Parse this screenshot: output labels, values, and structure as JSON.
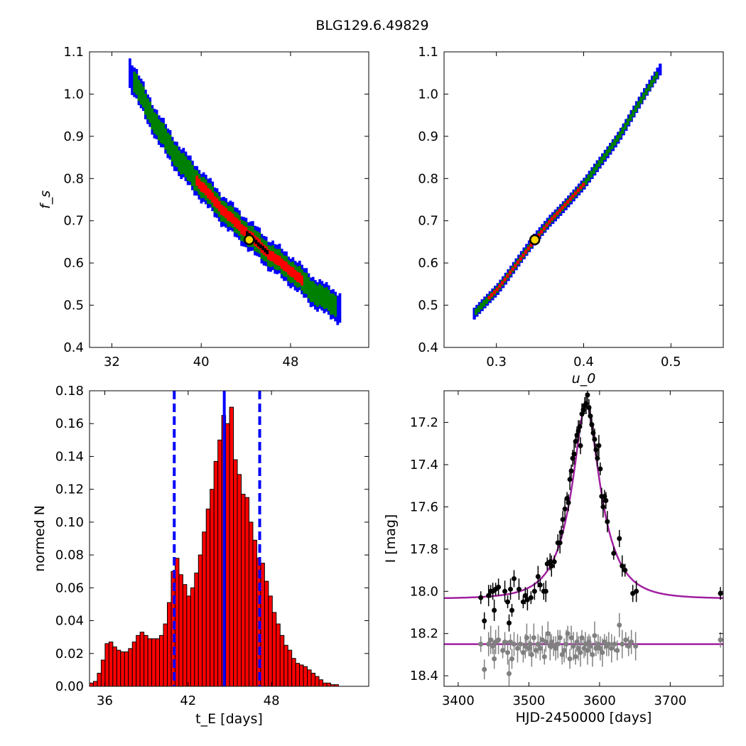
{
  "figure_title": "BLG129.6.49829",
  "colors": {
    "region_outer": "#0000ff",
    "region_mid": "#008000",
    "region_inner": "#ff0000",
    "region_core": "#000000",
    "best_marker_fill": "#ffd700",
    "hist_bar": "#ff0000",
    "hist_line": "#0000ff",
    "model_curve": "#a020a0",
    "data_points": "#000000",
    "residual_points": "#808080"
  },
  "chart_data": [
    {
      "type": "heatmap",
      "xlabel": "",
      "ylabel": "f_s",
      "xlim": [
        30.0,
        55.0
      ],
      "ylim": [
        0.4,
        1.1
      ],
      "xticks": [
        32,
        40,
        48
      ],
      "yticks": [
        0.4,
        0.5,
        0.6,
        0.7,
        0.8,
        0.9,
        1.0,
        1.1
      ],
      "confidence_band": {
        "centerline": [
          [
            33.5,
            1.05
          ],
          [
            36.0,
            0.92
          ],
          [
            38.0,
            0.84
          ],
          [
            40.0,
            0.78
          ],
          [
            42.0,
            0.72
          ],
          [
            44.0,
            0.67
          ],
          [
            46.0,
            0.62
          ],
          [
            48.0,
            0.58
          ],
          [
            50.0,
            0.53
          ],
          [
            52.5,
            0.49
          ]
        ],
        "outer_halfwidth_fs": 0.035,
        "mid_halfwidth_fs": 0.025,
        "inner_from_tE": 39.5,
        "inner_to_tE": 49.0,
        "inner_halfwidth_fs": 0.012
      },
      "best_fit": {
        "tE": 44.3,
        "fs": 0.655
      }
    },
    {
      "type": "heatmap",
      "xlabel": "u_0",
      "ylabel": "",
      "xlim": [
        0.24,
        0.56
      ],
      "ylim": [
        0.4,
        1.1
      ],
      "xticks": [
        0.3,
        0.4,
        0.5
      ],
      "yticks": [
        0.4,
        0.5,
        0.6,
        0.7,
        0.8,
        0.9,
        1.0,
        1.1
      ],
      "confidence_band": {
        "centerline": [
          [
            0.273,
            0.48
          ],
          [
            0.3,
            0.54
          ],
          [
            0.33,
            0.62
          ],
          [
            0.36,
            0.7
          ],
          [
            0.4,
            0.79
          ],
          [
            0.44,
            0.905
          ],
          [
            0.487,
            1.06
          ]
        ],
        "outer_halfwidth_fs": 0.014,
        "mid_halfwidth_fs": 0.008,
        "inner_from_u0": 0.29,
        "inner_to_u0": 0.4,
        "inner_halfwidth_fs": 0.004
      },
      "best_fit": {
        "u0": 0.344,
        "fs": 0.655
      }
    },
    {
      "type": "bar",
      "xlabel": "t_E [days]",
      "ylabel": "normed N",
      "xlim": [
        34.9,
        55.0
      ],
      "ylim": [
        0.0,
        0.18
      ],
      "xticks": [
        36,
        42,
        48
      ],
      "yticks": [
        0.0,
        0.02,
        0.04,
        0.06,
        0.08,
        0.1,
        0.12,
        0.14,
        0.16,
        0.18
      ],
      "bin_start": 34.9,
      "bin_width": 0.28,
      "values": [
        0.002,
        0.003,
        0.008,
        0.016,
        0.026,
        0.027,
        0.024,
        0.022,
        0.021,
        0.021,
        0.023,
        0.027,
        0.031,
        0.033,
        0.031,
        0.029,
        0.029,
        0.029,
        0.031,
        0.038,
        0.051,
        0.07,
        0.078,
        0.068,
        0.062,
        0.055,
        0.06,
        0.069,
        0.08,
        0.094,
        0.108,
        0.12,
        0.137,
        0.15,
        0.165,
        0.16,
        0.17,
        0.138,
        0.129,
        0.117,
        0.115,
        0.1,
        0.089,
        0.078,
        0.075,
        0.064,
        0.055,
        0.045,
        0.038,
        0.031,
        0.025,
        0.022,
        0.017,
        0.014,
        0.013,
        0.012,
        0.01,
        0.008,
        0.006,
        0.004,
        0.002,
        0.002,
        0.001,
        0.001
      ],
      "vlines": [
        {
          "x": 41.0,
          "style": "dashed"
        },
        {
          "x": 44.6,
          "style": "solid"
        },
        {
          "x": 47.15,
          "style": "dashed"
        }
      ]
    },
    {
      "type": "scatter",
      "xlabel": "HJD-2450000 [days]",
      "ylabel": "I [mag]",
      "xlim": [
        3380,
        3775
      ],
      "ylim": [
        18.45,
        17.05
      ],
      "xticks": [
        3400,
        3500,
        3600,
        3700
      ],
      "yticks": [
        17.2,
        17.4,
        17.6,
        17.8,
        18.0,
        18.2,
        18.4
      ],
      "model": {
        "t0": 3581,
        "tE": 44.6,
        "u0": 0.344,
        "fs": 0.655,
        "I_base": 18.035
      },
      "data_points": [
        [
          3432,
          18.03
        ],
        [
          3437,
          18.14
        ],
        [
          3443,
          18.02
        ],
        [
          3446,
          18.0
        ],
        [
          3449,
          18.0
        ],
        [
          3451,
          18.09
        ],
        [
          3453,
          17.99
        ],
        [
          3457,
          17.98
        ],
        [
          3466,
          18.0
        ],
        [
          3470,
          18.05
        ],
        [
          3472,
          18.15
        ],
        [
          3474,
          17.99
        ],
        [
          3476,
          18.09
        ],
        [
          3479,
          17.94
        ],
        [
          3486,
          17.99
        ],
        [
          3492,
          18.05
        ],
        [
          3495,
          18.02
        ],
        [
          3498,
          18.04
        ],
        [
          3503,
          18.03
        ],
        [
          3508,
          18.0
        ],
        [
          3513,
          17.93
        ],
        [
          3516,
          17.97
        ],
        [
          3521,
          18.0
        ],
        [
          3524,
          18.0
        ],
        [
          3526,
          17.87
        ],
        [
          3530,
          17.86
        ],
        [
          3532,
          17.88
        ],
        [
          3536,
          17.86
        ],
        [
          3541,
          17.77
        ],
        [
          3544,
          17.77
        ],
        [
          3546,
          17.72
        ],
        [
          3548,
          17.66
        ],
        [
          3551,
          17.61
        ],
        [
          3554,
          17.56
        ],
        [
          3556,
          17.58
        ],
        [
          3558,
          17.47
        ],
        [
          3560,
          17.43
        ],
        [
          3562,
          17.37
        ],
        [
          3564,
          17.35
        ],
        [
          3566,
          17.29
        ],
        [
          3568,
          17.26
        ],
        [
          3570,
          17.24
        ],
        [
          3572,
          17.22
        ],
        [
          3573,
          17.31
        ],
        [
          3575,
          17.16
        ],
        [
          3577,
          17.14
        ],
        [
          3579,
          17.12
        ],
        [
          3581,
          17.11
        ],
        [
          3583,
          17.07
        ],
        [
          3585,
          17.13
        ],
        [
          3587,
          17.17
        ],
        [
          3589,
          17.21
        ],
        [
          3591,
          17.25
        ],
        [
          3593,
          17.28
        ],
        [
          3595,
          17.33
        ],
        [
          3597,
          17.37
        ],
        [
          3599,
          17.31
        ],
        [
          3601,
          17.42
        ],
        [
          3603,
          17.55
        ],
        [
          3605,
          17.6
        ],
        [
          3607,
          17.55
        ],
        [
          3609,
          17.57
        ],
        [
          3611,
          17.67
        ],
        [
          3620,
          17.82
        ],
        [
          3628,
          17.75
        ],
        [
          3632,
          17.88
        ],
        [
          3636,
          17.9
        ],
        [
          3647,
          18.01
        ],
        [
          3652,
          18.0
        ],
        [
          3771,
          18.01
        ]
      ],
      "residual_points": [
        [
          3432,
          18.25
        ],
        [
          3437,
          18.37
        ],
        [
          3443,
          18.25
        ],
        [
          3446,
          18.23
        ],
        [
          3449,
          18.26
        ],
        [
          3451,
          18.32
        ],
        [
          3453,
          18.24
        ],
        [
          3457,
          18.23
        ],
        [
          3463,
          18.28
        ],
        [
          3466,
          18.24
        ],
        [
          3470,
          18.29
        ],
        [
          3472,
          18.39
        ],
        [
          3474,
          18.24
        ],
        [
          3476,
          18.32
        ],
        [
          3479,
          18.25
        ],
        [
          3484,
          18.27
        ],
        [
          3488,
          18.25
        ],
        [
          3492,
          18.29
        ],
        [
          3495,
          18.26
        ],
        [
          3497,
          18.22
        ],
        [
          3500,
          18.27
        ],
        [
          3502,
          18.25
        ],
        [
          3504,
          18.3
        ],
        [
          3507,
          18.22
        ],
        [
          3510,
          18.28
        ],
        [
          3513,
          18.25
        ],
        [
          3516,
          18.27
        ],
        [
          3519,
          18.23
        ],
        [
          3522,
          18.31
        ],
        [
          3524,
          18.24
        ],
        [
          3527,
          18.2
        ],
        [
          3530,
          18.26
        ],
        [
          3532,
          18.24
        ],
        [
          3535,
          18.26
        ],
        [
          3538,
          18.27
        ],
        [
          3541,
          18.25
        ],
        [
          3544,
          18.22
        ],
        [
          3547,
          18.3
        ],
        [
          3550,
          18.28
        ],
        [
          3553,
          18.25
        ],
        [
          3555,
          18.2
        ],
        [
          3558,
          18.32
        ],
        [
          3560,
          18.22
        ],
        [
          3563,
          18.26
        ],
        [
          3566,
          18.31
        ],
        [
          3568,
          18.24
        ],
        [
          3570,
          18.27
        ],
        [
          3573,
          18.29
        ],
        [
          3575,
          18.22
        ],
        [
          3578,
          18.27
        ],
        [
          3580,
          18.25
        ],
        [
          3583,
          18.28
        ],
        [
          3585,
          18.24
        ],
        [
          3587,
          18.26
        ],
        [
          3590,
          18.3
        ],
        [
          3593,
          18.21
        ],
        [
          3595,
          18.27
        ],
        [
          3598,
          18.25
        ],
        [
          3601,
          18.27
        ],
        [
          3604,
          18.29
        ],
        [
          3607,
          18.24
        ],
        [
          3610,
          18.26
        ],
        [
          3613,
          18.25
        ],
        [
          3617,
          18.27
        ],
        [
          3621,
          18.25
        ],
        [
          3625,
          18.28
        ],
        [
          3628,
          18.16
        ],
        [
          3632,
          18.25
        ],
        [
          3637,
          18.23
        ],
        [
          3641,
          18.26
        ],
        [
          3645,
          18.24
        ],
        [
          3651,
          18.26
        ],
        [
          3771,
          18.23
        ]
      ],
      "residual_offset": 18.25
    }
  ]
}
